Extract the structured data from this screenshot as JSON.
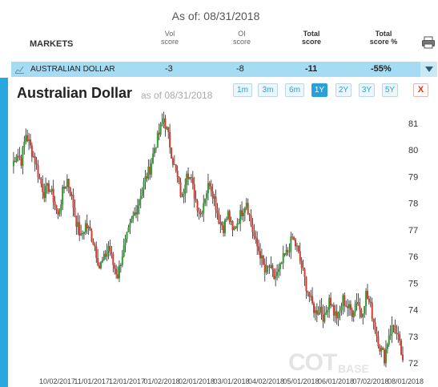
{
  "header": {
    "as_of": "As of: 08/31/2018",
    "markets_label": "MARKETS",
    "columns": [
      {
        "line1": "Vol",
        "line2": "score",
        "bold": false
      },
      {
        "line1": "OI",
        "line2": "score",
        "bold": false
      },
      {
        "line1": "Total",
        "line2": "score",
        "bold": true
      },
      {
        "line1": "Total",
        "line2": "score %",
        "bold": true
      }
    ]
  },
  "row": {
    "name": "AUSTRALIAN DOLLAR",
    "vol_score": "-3",
    "oi_score": "-8",
    "total_score": "-11",
    "total_score_pct": "-55%"
  },
  "chart_panel": {
    "title": "Australian Dollar",
    "as_of": "as of 08/31/2018",
    "ranges": [
      "1m",
      "3m",
      "6m",
      "1Y",
      "2Y",
      "3Y",
      "5Y"
    ],
    "active_range": "1Y",
    "close_label": "X"
  },
  "watermark": {
    "main": "COT",
    "sub": "BASE"
  },
  "colors": {
    "up": "#2f9e2f",
    "down": "#d83a2f",
    "accent": "#29a8e0",
    "row_highlight": "#a6dcf3"
  },
  "chart_data": {
    "type": "candlestick",
    "y_ticks": [
      "81",
      "80",
      "79",
      "78",
      "77",
      "76",
      "75",
      "74",
      "73",
      "72"
    ],
    "ylim": [
      71.6,
      81.6
    ],
    "x_ticks": [
      "10/02/2017",
      "11/01/2017",
      "12/01/2017",
      "01/02/2018",
      "02/01/2018",
      "03/01/2018",
      "04/02/2018",
      "05/01/2018",
      "06/01/2018",
      "07/02/2018",
      "08/01/2018"
    ],
    "close_series": [
      79.4,
      79.9,
      79.6,
      80.6,
      80.1,
      79.6,
      78.9,
      78.4,
      78.6,
      78.2,
      77.5,
      78.4,
      78.9,
      78.2,
      77.3,
      76.7,
      77.2,
      76.9,
      76.4,
      75.6,
      75.9,
      76.4,
      75.7,
      75.3,
      76.1,
      76.7,
      77.3,
      77.8,
      78.4,
      78.9,
      79.3,
      80.1,
      80.6,
      81.2,
      80.5,
      79.6,
      78.9,
      78.1,
      79.3,
      78.8,
      78.1,
      77.6,
      78.3,
      78.8,
      78.2,
      77.4,
      77.1,
      77.6,
      76.9,
      77.3,
      77.7,
      78.1,
      77.2,
      76.5,
      76.1,
      75.4,
      75.6,
      75.2,
      75.4,
      75.9,
      76.2,
      76.7,
      76.3,
      75.6,
      74.9,
      74.3,
      73.9,
      74.1,
      73.6,
      74.5,
      73.9,
      73.7,
      74.4,
      74.1,
      73.9,
      74.4,
      73.8,
      74.6,
      74.1,
      73.3,
      72.6,
      72.2,
      73.1,
      73.4,
      72.9,
      72.1
    ]
  }
}
